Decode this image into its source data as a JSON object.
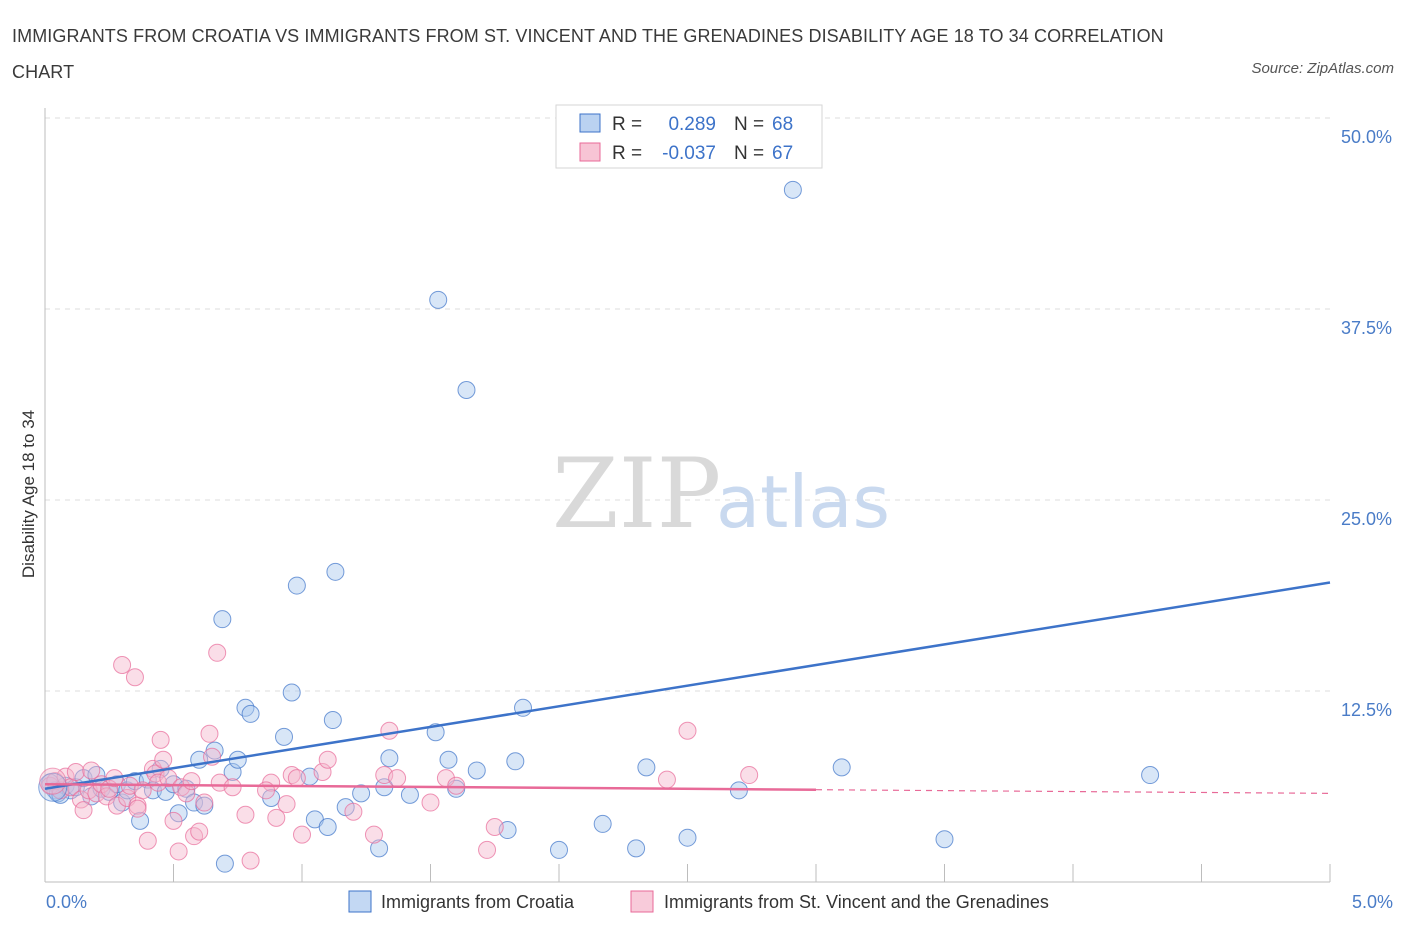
{
  "title": "IMMIGRANTS FROM CROATIA VS IMMIGRANTS FROM ST. VINCENT AND THE GRENADINES DISABILITY AGE 18 TO 34 CORRELATION CHART",
  "source": "Source: ZipAtlas.com",
  "watermark": {
    "zip": "ZIP",
    "atlas": "atlas"
  },
  "colors": {
    "blue": "#3d73c9",
    "blue_fill": "#a9c7ee",
    "pink": "#e86a98",
    "pink_fill": "#f5b5cb",
    "grid": "#dcdcdc"
  },
  "legend_box": {
    "rows": [
      {
        "r_label": "R =",
        "r_value": "0.289",
        "n_label": "N =",
        "n_value": "68"
      },
      {
        "r_label": "R =",
        "r_value": "-0.037",
        "n_label": "N =",
        "n_value": "67"
      }
    ]
  },
  "chart_data": {
    "type": "scatter",
    "xlabel": "",
    "ylabel": "Disability Age 18 to 34",
    "xlim": [
      0,
      5
    ],
    "ylim": [
      0,
      50
    ],
    "x_tick_labels": [
      "0.0%",
      "5.0%"
    ],
    "y_tick_labels": [
      "12.5%",
      "25.0%",
      "37.5%",
      "50.0%"
    ],
    "y_ticks": [
      12.5,
      25,
      37.5,
      50
    ],
    "grid": true,
    "legend_placement": "bottom",
    "series": [
      {
        "name": "Immigrants from Croatia",
        "color": "#3d73c9",
        "trend": {
          "x": [
            0.0,
            5.0
          ],
          "y": [
            6.1,
            19.6
          ],
          "dashed_from": null
        },
        "points": [
          [
            0.02,
            6.5
          ],
          [
            0.04,
            6.0
          ],
          [
            0.05,
            5.8
          ],
          [
            0.08,
            6.3
          ],
          [
            0.1,
            6.0
          ],
          [
            0.12,
            6.2
          ],
          [
            0.15,
            6.8
          ],
          [
            0.18,
            5.6
          ],
          [
            0.2,
            7.0
          ],
          [
            0.22,
            6.1
          ],
          [
            0.25,
            5.9
          ],
          [
            0.28,
            6.4
          ],
          [
            0.3,
            5.2
          ],
          [
            0.32,
            6.0
          ],
          [
            0.35,
            6.6
          ],
          [
            0.37,
            4.0
          ],
          [
            0.4,
            6.7
          ],
          [
            0.42,
            6.0
          ],
          [
            0.45,
            7.4
          ],
          [
            0.47,
            5.9
          ],
          [
            0.5,
            6.4
          ],
          [
            0.52,
            4.5
          ],
          [
            0.55,
            6.1
          ],
          [
            0.58,
            5.2
          ],
          [
            0.6,
            8.0
          ],
          [
            0.62,
            5.0
          ],
          [
            0.66,
            8.6
          ],
          [
            0.69,
            17.2
          ],
          [
            0.7,
            1.2
          ],
          [
            0.73,
            7.2
          ],
          [
            0.75,
            8.0
          ],
          [
            0.78,
            11.4
          ],
          [
            0.8,
            11.0
          ],
          [
            0.88,
            5.5
          ],
          [
            0.93,
            9.5
          ],
          [
            0.96,
            12.4
          ],
          [
            0.98,
            19.4
          ],
          [
            1.03,
            6.9
          ],
          [
            1.05,
            4.1
          ],
          [
            1.1,
            3.6
          ],
          [
            1.12,
            10.6
          ],
          [
            1.13,
            20.3
          ],
          [
            1.17,
            4.9
          ],
          [
            1.23,
            5.8
          ],
          [
            1.3,
            2.2
          ],
          [
            1.32,
            6.2
          ],
          [
            1.34,
            8.1
          ],
          [
            1.42,
            5.7
          ],
          [
            1.52,
            9.8
          ],
          [
            1.53,
            38.1
          ],
          [
            1.57,
            8.0
          ],
          [
            1.6,
            6.1
          ],
          [
            1.64,
            32.2
          ],
          [
            1.68,
            7.3
          ],
          [
            1.8,
            3.4
          ],
          [
            1.83,
            7.9
          ],
          [
            1.86,
            11.4
          ],
          [
            2.0,
            2.1
          ],
          [
            2.17,
            3.8
          ],
          [
            2.3,
            2.2
          ],
          [
            2.34,
            7.5
          ],
          [
            2.5,
            2.9
          ],
          [
            2.7,
            6.0
          ],
          [
            2.91,
            45.3
          ],
          [
            3.1,
            7.5
          ],
          [
            3.5,
            2.8
          ],
          [
            4.3,
            7.0
          ],
          [
            0.06,
            5.7
          ]
        ]
      },
      {
        "name": "Immigrants from St. Vincent and the Grenadines",
        "color": "#e86a98",
        "trend": {
          "x": [
            0.0,
            5.0
          ],
          "y": [
            6.4,
            5.8
          ],
          "dashed_from": 3.0
        },
        "points": [
          [
            0.02,
            6.3
          ],
          [
            0.04,
            6.6
          ],
          [
            0.06,
            6.0
          ],
          [
            0.08,
            6.9
          ],
          [
            0.1,
            6.2
          ],
          [
            0.12,
            7.2
          ],
          [
            0.14,
            5.4
          ],
          [
            0.15,
            4.7
          ],
          [
            0.17,
            6.0
          ],
          [
            0.18,
            7.3
          ],
          [
            0.2,
            5.8
          ],
          [
            0.22,
            6.4
          ],
          [
            0.24,
            5.6
          ],
          [
            0.25,
            6.1
          ],
          [
            0.27,
            6.8
          ],
          [
            0.28,
            5.0
          ],
          [
            0.3,
            14.2
          ],
          [
            0.32,
            5.5
          ],
          [
            0.33,
            6.3
          ],
          [
            0.35,
            13.4
          ],
          [
            0.36,
            5.0
          ],
          [
            0.38,
            6.0
          ],
          [
            0.4,
            2.7
          ],
          [
            0.42,
            7.4
          ],
          [
            0.43,
            7.1
          ],
          [
            0.44,
            6.5
          ],
          [
            0.45,
            9.3
          ],
          [
            0.46,
            8.0
          ],
          [
            0.48,
            6.8
          ],
          [
            0.5,
            4.0
          ],
          [
            0.52,
            2.0
          ],
          [
            0.53,
            6.2
          ],
          [
            0.55,
            5.8
          ],
          [
            0.57,
            6.6
          ],
          [
            0.58,
            3.0
          ],
          [
            0.6,
            3.3
          ],
          [
            0.62,
            5.2
          ],
          [
            0.64,
            9.7
          ],
          [
            0.65,
            8.2
          ],
          [
            0.67,
            15.0
          ],
          [
            0.68,
            6.5
          ],
          [
            0.73,
            6.2
          ],
          [
            0.78,
            4.4
          ],
          [
            0.8,
            1.4
          ],
          [
            0.88,
            6.5
          ],
          [
            0.9,
            4.2
          ],
          [
            0.94,
            5.1
          ],
          [
            0.96,
            7.0
          ],
          [
            0.98,
            6.8
          ],
          [
            1.0,
            3.1
          ],
          [
            1.08,
            7.2
          ],
          [
            1.1,
            8.0
          ],
          [
            1.2,
            4.6
          ],
          [
            1.28,
            3.1
          ],
          [
            1.32,
            7.0
          ],
          [
            1.34,
            9.9
          ],
          [
            1.37,
            6.8
          ],
          [
            1.5,
            5.2
          ],
          [
            1.56,
            6.8
          ],
          [
            1.6,
            6.3
          ],
          [
            1.72,
            2.1
          ],
          [
            1.75,
            3.6
          ],
          [
            2.42,
            6.7
          ],
          [
            2.5,
            9.9
          ],
          [
            2.74,
            7.0
          ],
          [
            0.36,
            4.8
          ],
          [
            0.86,
            6.0
          ]
        ]
      }
    ]
  }
}
